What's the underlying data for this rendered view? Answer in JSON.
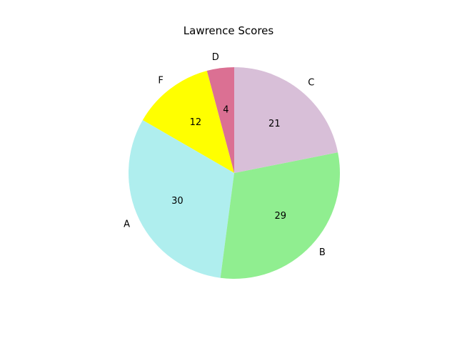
{
  "chart_data": {
    "type": "pie",
    "title": "Lawrence Scores",
    "start_angle_deg": 90,
    "direction": "counterclockwise",
    "slices": [
      {
        "label": "D",
        "value": 4,
        "color": "#db7093"
      },
      {
        "label": "F",
        "value": 12,
        "color": "#ffff00"
      },
      {
        "label": "A",
        "value": 30,
        "color": "#afeeee"
      },
      {
        "label": "B",
        "value": 29,
        "color": "#90ee90"
      },
      {
        "label": "C",
        "value": 21,
        "color": "#d8bfd8"
      }
    ]
  }
}
